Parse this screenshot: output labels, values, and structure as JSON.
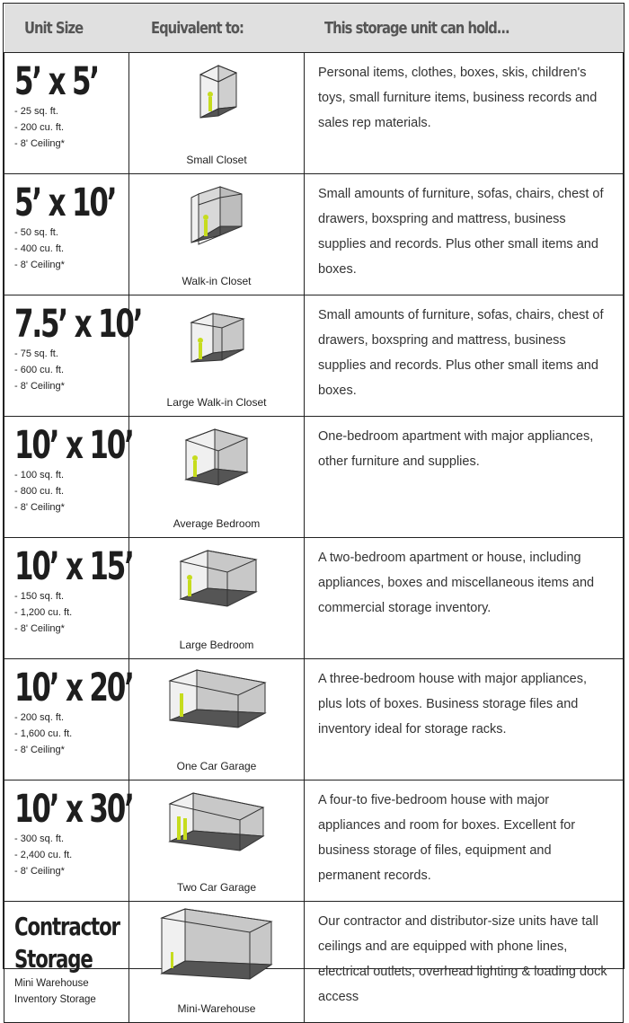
{
  "header": {
    "col_size": "Unit Size",
    "col_equiv": "Equivalent to:",
    "col_hold": "This storage unit can hold..."
  },
  "units": [
    {
      "size": "5’ x 5’",
      "specs": [
        "- 25 sq. ft.",
        "- 200 cu. ft.",
        "- 8' Ceiling*"
      ],
      "equivalent": "Small Closet",
      "icon": "small-closet-icon",
      "description": "Personal items, clothes, boxes, skis, children's toys, small furniture items, business records and sales rep materials."
    },
    {
      "size": "5’ x 10’",
      "specs": [
        "- 50 sq. ft.",
        "- 400 cu. ft.",
        "- 8' Ceiling*"
      ],
      "equivalent": "Walk-in Closet",
      "icon": "walk-in-closet-icon",
      "description": "Small amounts of furniture, sofas, chairs, chest of drawers, boxspring and mattress, business supplies and records. Plus other small items and boxes."
    },
    {
      "size": "7.5’ x 10’",
      "specs": [
        "- 75 sq. ft.",
        "- 600 cu. ft.",
        "- 8' Ceiling*"
      ],
      "equivalent": "Large Walk-in Closet",
      "icon": "large-walk-in-closet-icon",
      "description": "Small amounts of furniture, sofas, chairs, chest of drawers, boxspring and mattress, business supplies and records. Plus other small items and boxes."
    },
    {
      "size": "10’ x 10’",
      "specs": [
        "- 100 sq. ft.",
        "- 800 cu. ft.",
        "- 8' Ceiling*"
      ],
      "equivalent": "Average Bedroom",
      "icon": "average-bedroom-icon",
      "description": "One-bedroom apartment with major appliances, other furniture and supplies."
    },
    {
      "size": "10’ x 15’",
      "specs": [
        "- 150 sq. ft.",
        "- 1,200 cu. ft.",
        "- 8' Ceiling*"
      ],
      "equivalent": "Large Bedroom",
      "icon": "large-bedroom-icon",
      "description": "A two-bedroom apartment or house, including appliances, boxes and miscellaneous items and commercial storage inventory."
    },
    {
      "size": "10’ x 20’",
      "specs": [
        "- 200 sq. ft.",
        "- 1,600 cu. ft.",
        "- 8' Ceiling*"
      ],
      "equivalent": "One Car Garage",
      "icon": "one-car-garage-icon",
      "description": "A three-bedroom house with major appliances, plus lots of boxes. Business storage files and inventory ideal for storage racks."
    },
    {
      "size": "10’ x 30’",
      "specs": [
        "- 300 sq. ft.",
        "- 2,400 cu. ft.",
        "- 8' Ceiling*"
      ],
      "equivalent": "Two Car Garage",
      "icon": "two-car-garage-icon",
      "description": "A four-to five-bedroom house with major appliances and room for boxes. Excellent for business storage of files, equipment and permanent records."
    },
    {
      "size_lines": [
        "Contractor",
        "Storage"
      ],
      "specs": [
        "Mini Warehouse",
        "Inventory Storage"
      ],
      "equivalent": "Mini-Warehouse",
      "icon": "mini-warehouse-icon",
      "description": "Our contractor and distributor-size units have tall ceilings and are equipped with phone lines, electrical outlets, overhead lighting & loading dock access"
    }
  ],
  "colors": {
    "header_bg": "#e0e0e0",
    "header_text": "#555555",
    "border": "#222222",
    "figure_accent": "#c6dc1e"
  }
}
